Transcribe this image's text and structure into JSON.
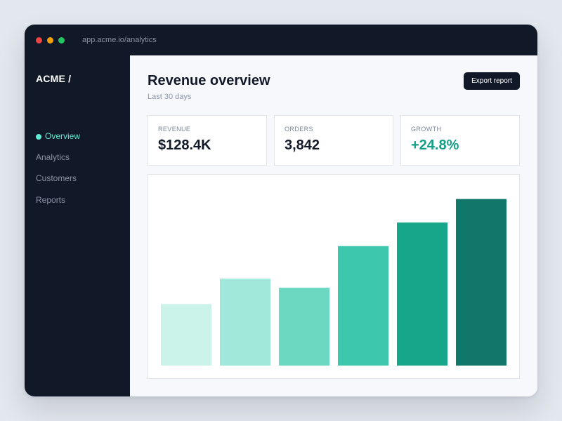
{
  "browser": {
    "url": "app.acme.io/analytics",
    "controls": [
      "close",
      "minimize",
      "maximize"
    ],
    "control_colors": {
      "close": "#ef4444",
      "minimize": "#f59e0b",
      "maximize": "#22c55e"
    }
  },
  "sidebar": {
    "brand": "ACME /",
    "items": [
      {
        "label": "Overview",
        "active": true,
        "icon": "active-dot-icon"
      },
      {
        "label": "Analytics",
        "active": false
      },
      {
        "label": "Customers",
        "active": false
      },
      {
        "label": "Reports",
        "active": false
      }
    ]
  },
  "header": {
    "title": "Revenue overview",
    "subtitle": "Last 30 days",
    "export_label": "Export report"
  },
  "stats": [
    {
      "label": "REVENUE",
      "value": "$128.4K"
    },
    {
      "label": "ORDERS",
      "value": "3,842"
    },
    {
      "label": "GROWTH",
      "value": "+24.8%"
    }
  ],
  "colors": {
    "accent": "#5eead4",
    "sidebar_bg": "#111827",
    "growth_positive": "#149e86",
    "bars": [
      "#ccf3ea",
      "#a2e8da",
      "#6cd8c2",
      "#3dc7ac",
      "#18a68b",
      "#11776b"
    ]
  },
  "chart_data": {
    "type": "bar",
    "categories": [
      "",
      "",
      "",
      "",
      "",
      ""
    ],
    "values": [
      34,
      48,
      43,
      66,
      79,
      92
    ],
    "ylim": [
      0,
      100
    ],
    "title": "",
    "xlabel": "",
    "ylabel": "",
    "grid": false,
    "legend": "none",
    "axes_visible": false
  }
}
